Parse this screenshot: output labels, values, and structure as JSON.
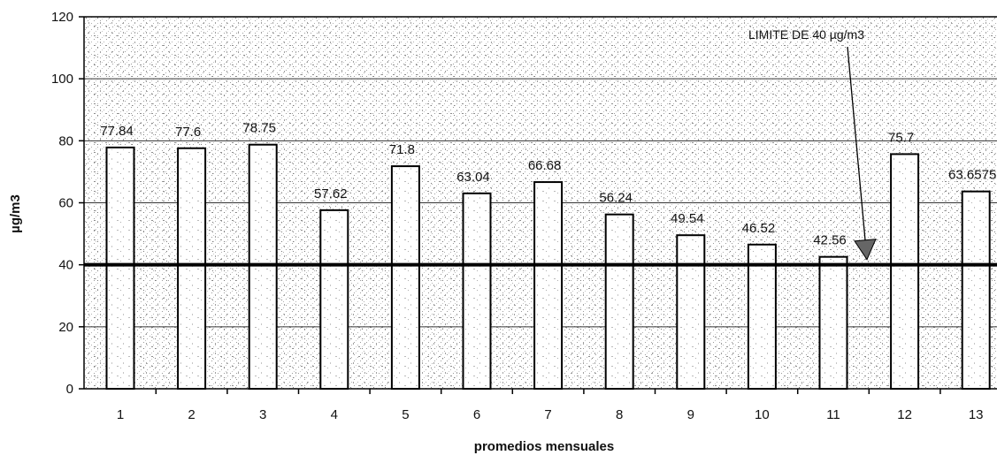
{
  "chart_data": {
    "type": "bar",
    "title": "",
    "xlabel": "promedios mensuales",
    "ylabel": "µg/m3",
    "categories": [
      "1",
      "2",
      "3",
      "4",
      "5",
      "6",
      "7",
      "8",
      "9",
      "10",
      "11",
      "12",
      "13"
    ],
    "values": [
      77.84,
      77.6,
      78.75,
      57.62,
      71.8,
      63.04,
      66.68,
      56.24,
      49.54,
      46.52,
      42.56,
      75.7,
      63.6575
    ],
    "data_labels": [
      "77.84",
      "77.6",
      "78.75",
      "57.62",
      "71.8",
      "63.04",
      "66.68",
      "56.24",
      "49.54",
      "46.52",
      "42.56",
      "75.7",
      "63.6575"
    ],
    "ylim": [
      0,
      120
    ],
    "yticks": [
      0,
      20,
      40,
      60,
      80,
      100,
      120
    ],
    "grid": true,
    "reference_line": {
      "value": 40,
      "label": "LIMITE DE 40 µg/m3"
    },
    "colors": {
      "bar_fill": "#ffffff",
      "bar_stroke": "#000000",
      "limit_line": "#000000",
      "plot_background": "#ffffff",
      "grid": "#333333"
    }
  }
}
